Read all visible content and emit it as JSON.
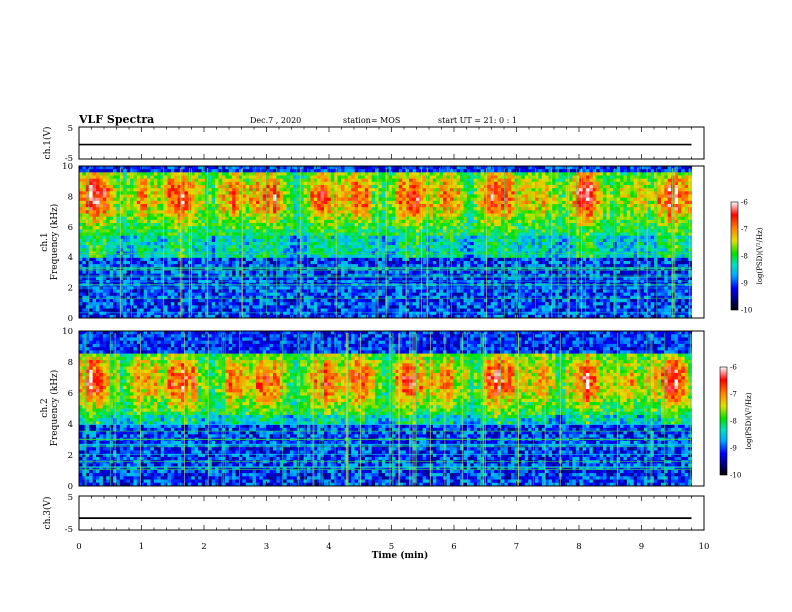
{
  "header": {
    "title": "VLF Spectra",
    "date": "Dec.7 , 2020",
    "station": "station= MOS",
    "start": "start UT =  21: 0  : 1"
  },
  "chart_data": [
    {
      "type": "line",
      "panel": "ch1-waveform",
      "ylabel": "ch.1(V)",
      "ylim": [
        -5,
        5
      ],
      "yticks": [
        "5",
        "-5"
      ],
      "xlim": [
        0,
        10
      ],
      "x": [
        0,
        9.8
      ],
      "values": [
        -0.5,
        -0.5
      ]
    },
    {
      "type": "heatmap",
      "panel": "ch1-spectrogram",
      "ylabel": "ch.1\nFrequency (kHz)",
      "ylabel_line1": "ch.1",
      "ylabel_line2": "Frequency (kHz)",
      "ylim": [
        0,
        10
      ],
      "yticks": [
        "0",
        "2",
        "4",
        "6",
        "8",
        "10"
      ],
      "xlim": [
        0,
        10
      ],
      "data_xmax": 9.8,
      "colorbar": {
        "label": "log(PSD)(V²/Hz)",
        "range": [
          -10,
          -6
        ],
        "ticks": [
          "-6",
          "-7",
          "-8",
          "-9",
          "-10"
        ]
      },
      "band_kHz": [
        5.5,
        9.5
      ],
      "peak_kHz": 8.0
    },
    {
      "type": "heatmap",
      "panel": "ch2-spectrogram",
      "ylabel": "ch.2\nFrequency (kHz)",
      "ylabel_line1": "ch.2",
      "ylabel_line2": "Frequency (kHz)",
      "ylim": [
        0,
        10
      ],
      "yticks": [
        "0",
        "2",
        "4",
        "6",
        "8",
        "10"
      ],
      "xlim": [
        0,
        10
      ],
      "data_xmax": 9.8,
      "colorbar": {
        "label": "log(PSD)(V²/Hz)",
        "range": [
          -10,
          -6
        ],
        "ticks": [
          "-6",
          "-7",
          "-8",
          "-9",
          "-10"
        ]
      },
      "band_kHz": [
        4.5,
        8.5
      ],
      "peak_kHz": 6.8
    },
    {
      "type": "line",
      "panel": "ch3-waveform",
      "ylabel": "ch.3(V)",
      "ylim": [
        -5,
        5
      ],
      "yticks": [
        "5",
        "-5"
      ],
      "xlim": [
        0,
        10
      ],
      "xlabel": "Time (min)",
      "xticks": [
        "0",
        "1",
        "2",
        "3",
        "4",
        "5",
        "6",
        "7",
        "8",
        "9",
        "10"
      ],
      "x": [
        0,
        9.8
      ],
      "values": [
        -1.5,
        -1.5
      ]
    }
  ]
}
